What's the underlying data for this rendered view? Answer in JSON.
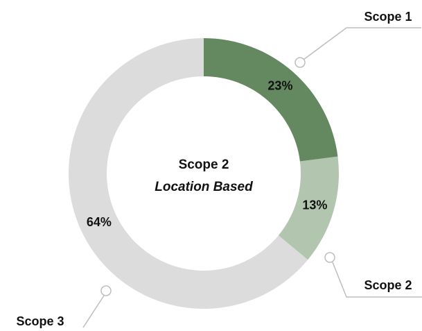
{
  "chart_data": {
    "type": "donut",
    "title": "Scope 2",
    "subtitle": "Location Based",
    "categories": [
      "Scope 1",
      "Scope 2",
      "Scope 3"
    ],
    "values": [
      23,
      13,
      64
    ],
    "value_labels": [
      "23%",
      "13%",
      "64%"
    ],
    "colors": [
      "#64885f",
      "#b2c6af",
      "#dcdcdc"
    ]
  }
}
